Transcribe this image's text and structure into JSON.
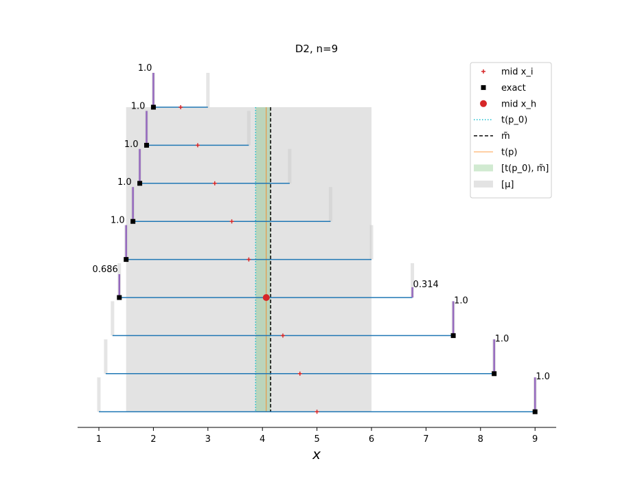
{
  "chart_data": {
    "type": "line",
    "title": "D2, n=9",
    "xlabel": "x",
    "xlim": [
      0.6,
      9.4
    ],
    "xticks": [
      1,
      2,
      3,
      4,
      5,
      6,
      7,
      8,
      9
    ],
    "row_count": 9,
    "mu_interval": [
      1.5,
      6.0
    ],
    "t_p0": 3.875,
    "m_tilde": 4.15,
    "t_p": 4.07,
    "mid_xh": 4.07,
    "colors": {
      "interval": "#1f77b4",
      "weight_bar": "#9467bd",
      "ghost_bar": "#cccccc",
      "mid_xi": "#d62728",
      "exact": "#000000",
      "mid_xh": "#d62728",
      "t_p0": "#17becf",
      "m_tilde": "#000000",
      "t_p": "#ff7f0e",
      "band": "#2ca02c",
      "mu": "#cccccc"
    },
    "intervals": [
      {
        "left": 2.0,
        "right": 3.0,
        "mid": 2.5,
        "exact": 2.0,
        "bar_at": "left",
        "weight_label": "1.0"
      },
      {
        "left": 1.875,
        "right": 3.75,
        "mid": 2.8125,
        "exact": 1.875,
        "bar_at": "left",
        "weight_label": "1.0"
      },
      {
        "left": 1.75,
        "right": 4.5,
        "mid": 3.125,
        "exact": 1.75,
        "bar_at": "left",
        "weight_label": "1.0"
      },
      {
        "left": 1.625,
        "right": 5.25,
        "mid": 3.4375,
        "exact": 1.625,
        "bar_at": "left",
        "weight_label": "1.0"
      },
      {
        "left": 1.5,
        "right": 6.0,
        "mid": 3.75,
        "exact": 1.5,
        "bar_at": "left",
        "weight_label": "1.0"
      },
      {
        "left": 1.375,
        "right": 6.75,
        "mid": null,
        "exact": 1.375,
        "bar_at": "both",
        "weight_label": "0.686",
        "weight_label_right": "0.314"
      },
      {
        "left": 1.25,
        "right": 7.5,
        "mid": 4.375,
        "exact": 7.5,
        "bar_at": "right",
        "weight_label": "1.0"
      },
      {
        "left": 1.125,
        "right": 8.25,
        "mid": 4.6875,
        "exact": 8.25,
        "bar_at": "right",
        "weight_label": "1.0"
      },
      {
        "left": 1.0,
        "right": 9.0,
        "mid": 5.0,
        "exact": 9.0,
        "bar_at": "right",
        "weight_label": "1.0"
      }
    ],
    "legend": {
      "placement": "top-right",
      "entries": [
        {
          "key": "mid_xi",
          "label": "mid x_i"
        },
        {
          "key": "exact",
          "label": "exact"
        },
        {
          "key": "mid_xh",
          "label": "mid x_h"
        },
        {
          "key": "t_p0",
          "label": "t(p_0)"
        },
        {
          "key": "m_tilde",
          "label": "m̃"
        },
        {
          "key": "t_p",
          "label": "t(p)"
        },
        {
          "key": "band",
          "label": "[t(p_0), m̃]"
        },
        {
          "key": "mu",
          "label": "[μ]"
        }
      ]
    }
  }
}
